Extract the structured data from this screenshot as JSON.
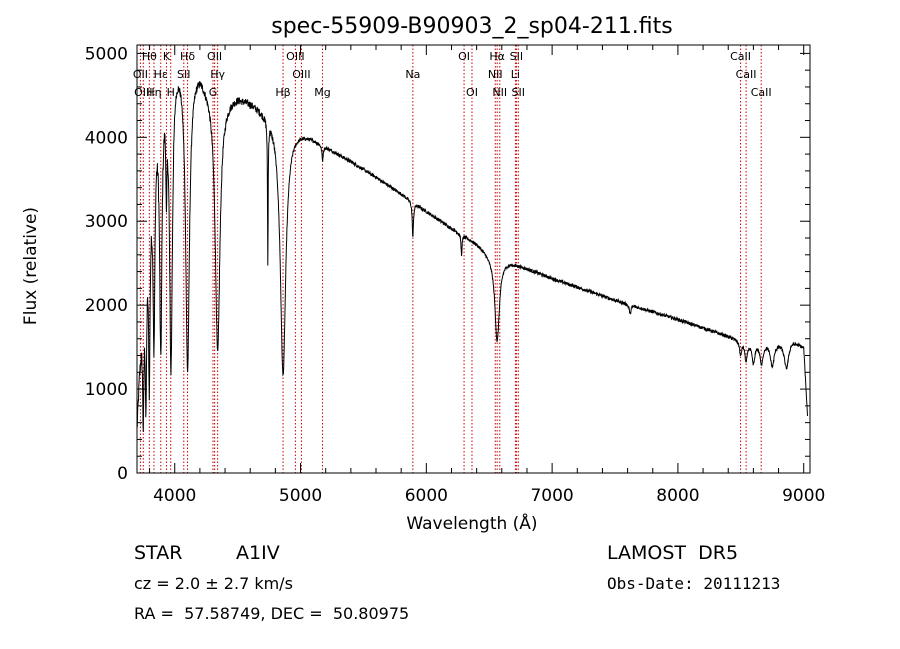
{
  "chart_data": {
    "type": "line",
    "title": "spec-55909-B90903_2_sp04-211.fits",
    "xlabel": "Wavelength (Å)",
    "ylabel": "Flux (relative)",
    "xlim": [
      3700,
      9050
    ],
    "ylim": [
      0,
      5100
    ],
    "xticks": [
      4000,
      5000,
      6000,
      7000,
      8000,
      9000
    ],
    "yticks": [
      0,
      1000,
      2000,
      3000,
      4000,
      5000
    ],
    "grid": false,
    "legend": "none",
    "line_color": "#000000",
    "marker_color": "#cc0000",
    "continuum": [
      [
        3700,
        600
      ],
      [
        3720,
        1300
      ],
      [
        3760,
        2300
      ],
      [
        3800,
        3300
      ],
      [
        3850,
        4300
      ],
      [
        3900,
        4700
      ],
      [
        3950,
        4950
      ],
      [
        4000,
        5050
      ],
      [
        4050,
        5000
      ],
      [
        4100,
        4900
      ],
      [
        4200,
        4850
      ],
      [
        4250,
        4700
      ],
      [
        4300,
        4600
      ],
      [
        4400,
        4500
      ],
      [
        4500,
        4520
      ],
      [
        4600,
        4450
      ],
      [
        4700,
        4350
      ],
      [
        4800,
        4250
      ],
      [
        4900,
        4130
      ],
      [
        5000,
        4080
      ],
      [
        5100,
        4000
      ],
      [
        5200,
        3900
      ],
      [
        5400,
        3720
      ],
      [
        5600,
        3530
      ],
      [
        5800,
        3330
      ],
      [
        6000,
        3120
      ],
      [
        6200,
        2920
      ],
      [
        6400,
        2740
      ],
      [
        6500,
        2610
      ],
      [
        6600,
        2550
      ],
      [
        6700,
        2500
      ],
      [
        7000,
        2320
      ],
      [
        7500,
        2060
      ],
      [
        8000,
        1830
      ],
      [
        8500,
        1580
      ],
      [
        8600,
        1560
      ],
      [
        8700,
        1560
      ],
      [
        8800,
        1570
      ],
      [
        8900,
        1600
      ],
      [
        9000,
        1500
      ],
      [
        9030,
        700
      ]
    ],
    "absorption_features": [
      {
        "center": 3750,
        "width": 6,
        "depth": 1300
      },
      {
        "center": 3771,
        "width": 6,
        "depth": 1600
      },
      {
        "center": 3798,
        "width": 7,
        "depth": 2000
      },
      {
        "center": 3835,
        "width": 9,
        "depth": 2300
      },
      {
        "center": 3889,
        "width": 11,
        "depth": 3000
      },
      {
        "center": 3934,
        "width": 5,
        "depth": 1100
      },
      {
        "center": 3970,
        "width": 14,
        "depth": 3600
      },
      {
        "center": 4102,
        "width": 18,
        "depth": 3600
      },
      {
        "center": 4341,
        "width": 22,
        "depth": 3100
      },
      {
        "center": 4740,
        "width": 3,
        "depth": 1700
      },
      {
        "center": 4861,
        "width": 26,
        "depth": 3000
      },
      {
        "center": 5175,
        "width": 6,
        "depth": 180
      },
      {
        "center": 5893,
        "width": 6,
        "depth": 420
      },
      {
        "center": 6280,
        "width": 5,
        "depth": 240
      },
      {
        "center": 6563,
        "width": 22,
        "depth": 1000
      },
      {
        "center": 7620,
        "width": 8,
        "depth": 110
      },
      {
        "center": 8498,
        "width": 9,
        "depth": 170
      },
      {
        "center": 8542,
        "width": 11,
        "depth": 230
      },
      {
        "center": 8600,
        "width": 14,
        "depth": 240
      },
      {
        "center": 8665,
        "width": 14,
        "depth": 250
      },
      {
        "center": 8750,
        "width": 18,
        "depth": 280
      },
      {
        "center": 8863,
        "width": 22,
        "depth": 330
      }
    ],
    "line_markers": [
      {
        "label": "Hθ",
        "wavelength": 3798,
        "row": 0
      },
      {
        "label": "K",
        "wavelength": 3934,
        "row": 0
      },
      {
        "label": "Hδ",
        "wavelength": 4102,
        "row": 0
      },
      {
        "label": "OII",
        "wavelength": 4317,
        "row": 0
      },
      {
        "label": "OIII",
        "wavelength": 4959,
        "row": 0
      },
      {
        "label": "OI",
        "wavelength": 6300,
        "row": 0
      },
      {
        "label": "Hα",
        "wavelength": 6563,
        "row": 0
      },
      {
        "label": "SII",
        "wavelength": 6716,
        "row": 0
      },
      {
        "label": "CaII",
        "wavelength": 8498,
        "row": 0
      },
      {
        "label": "OII",
        "wavelength": 3727,
        "row": 1
      },
      {
        "label": "Hε",
        "wavelength": 3889,
        "row": 1
      },
      {
        "label": "SII",
        "wavelength": 4072,
        "row": 1
      },
      {
        "label": "Hγ",
        "wavelength": 4341,
        "row": 1
      },
      {
        "label": "OIII",
        "wavelength": 5007,
        "row": 1
      },
      {
        "label": "Na",
        "wavelength": 5893,
        "row": 1
      },
      {
        "label": "NII",
        "wavelength": 6548,
        "row": 1
      },
      {
        "label": "Li",
        "wavelength": 6708,
        "row": 1
      },
      {
        "label": "CaII",
        "wavelength": 8542,
        "row": 1
      },
      {
        "label": "OIII",
        "wavelength": 3750,
        "row": 2
      },
      {
        "label": "Hη",
        "wavelength": 3835,
        "row": 2
      },
      {
        "label": "H",
        "wavelength": 3968,
        "row": 2
      },
      {
        "label": "G",
        "wavelength": 4304,
        "row": 2
      },
      {
        "label": "Hβ",
        "wavelength": 4861,
        "row": 2
      },
      {
        "label": "Mg",
        "wavelength": 5175,
        "row": 2
      },
      {
        "label": "OI",
        "wavelength": 6363,
        "row": 2
      },
      {
        "label": "NII",
        "wavelength": 6584,
        "row": 2
      },
      {
        "label": "SII",
        "wavelength": 6731,
        "row": 2
      },
      {
        "label": "CaII",
        "wavelength": 8662,
        "row": 2
      }
    ]
  },
  "footer": {
    "object_class": "STAR",
    "subclass": "A1IV",
    "survey": "LAMOST  DR5",
    "redshift": "cz = 2.0 ± 2.7 km/s",
    "obs_date": "Obs-Date: 20111213",
    "coords": "RA =  57.58749, DEC =  50.80975"
  }
}
